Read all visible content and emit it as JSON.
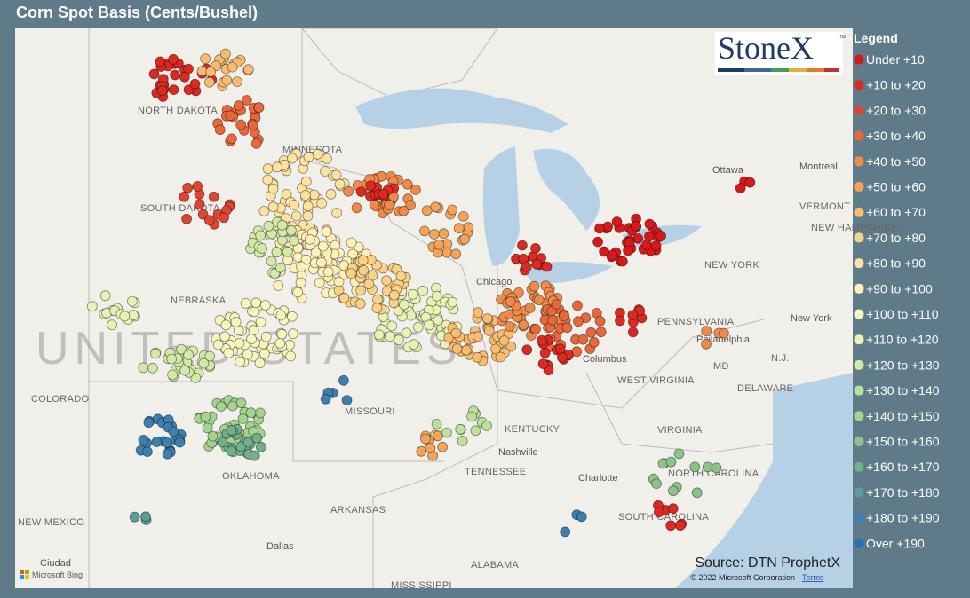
{
  "header": {
    "title": "Corn Spot Basis (Cents/Bushel)"
  },
  "logo": {
    "text": "StoneX",
    "mark": "™"
  },
  "legend": {
    "title": "Legend",
    "items": [
      {
        "label": "Under +10",
        "color": "#d7191c"
      },
      {
        "label": "+10 to +20",
        "color": "#da2a22"
      },
      {
        "label": "+20 to +30",
        "color": "#df4430"
      },
      {
        "label": "+30 to +40",
        "color": "#e8683c"
      },
      {
        "label": "+40 to +50",
        "color": "#ee8a4a"
      },
      {
        "label": "+50 to +60",
        "color": "#f4a35a"
      },
      {
        "label": "+60 to +70",
        "color": "#f8bc70"
      },
      {
        "label": "+70 to +80",
        "color": "#fbd188"
      },
      {
        "label": "+80 to +90",
        "color": "#fde3a0"
      },
      {
        "label": "+90 to +100",
        "color": "#fef1b6"
      },
      {
        "label": "+100 to +110",
        "color": "#f8f6bf"
      },
      {
        "label": "+110 to +120",
        "color": "#e9f1b5"
      },
      {
        "label": "+120 to +130",
        "color": "#d3e9a7"
      },
      {
        "label": "+130 to +140",
        "color": "#bde09b"
      },
      {
        "label": "+140 to +150",
        "color": "#a4d38f"
      },
      {
        "label": "+150 to +160",
        "color": "#8cc389"
      },
      {
        "label": "+160 to +170",
        "color": "#72b08a"
      },
      {
        "label": "+170 to +180",
        "color": "#5a9c98"
      },
      {
        "label": "+180 to +190",
        "color": "#3d7fb0"
      },
      {
        "label": "Over +190",
        "color": "#2c6fb5"
      }
    ]
  },
  "map": {
    "country": "UNITED STATES",
    "labels": [
      "NORTH DAKOTA",
      "MINNESOTA",
      "SOUTH DAKOTA",
      "NEBRASKA",
      "COLORADO",
      "MISSOURI",
      "KENTUCKY",
      "TENNESSEE",
      "OKLAHOMA",
      "ARKANSAS",
      "NEW MEXICO",
      "ALABAMA",
      "MISSISSIPPI",
      "WEST VIRGINIA",
      "VIRGINIA",
      "NORTH CAROLINA",
      "SOUTH CAROLINA",
      "PENNSYLVANIA",
      "NEW YORK",
      "VERMONT",
      "NEW HAMPSHIRE",
      "DELAWARE",
      "MD",
      "N.J.",
      "Chicago",
      "Columbus",
      "Nashville",
      "Charlotte",
      "Dallas",
      "Philadelphia",
      "New York",
      "Ottawa",
      "Montreal",
      "Ciudad"
    ],
    "source": "Source: DTN ProphetX",
    "copyright": "© 2022 Microsoft Corporation",
    "terms": "Terms",
    "provider": "Microsoft Bing"
  }
}
